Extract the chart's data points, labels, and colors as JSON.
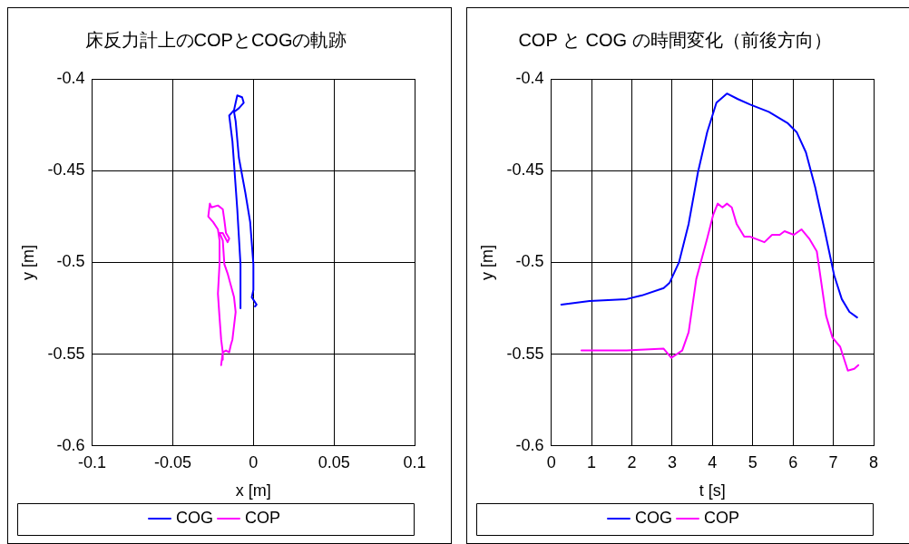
{
  "chart_data": [
    {
      "type": "line",
      "title": "床反力計上のCOPとCOGの軌跡",
      "xlabel": "x [m]",
      "ylabel": "y [m]",
      "xlim": [
        -0.1,
        0.1
      ],
      "xticks": [
        -0.1,
        -0.05,
        0,
        0.05,
        0.1
      ],
      "ylim": [
        -0.6,
        -0.4
      ],
      "yticks": [
        -0.6,
        -0.55,
        -0.5,
        -0.45,
        -0.4
      ],
      "grid": true,
      "legend": "bottom",
      "marker": "none",
      "line_style": "solid",
      "series": [
        {
          "name": "COG",
          "color": "#0000ff",
          "x": [
            -0.008,
            -0.008,
            -0.01,
            -0.013,
            -0.015,
            -0.012,
            -0.011,
            -0.01,
            -0.007,
            -0.006,
            -0.009,
            -0.012,
            -0.011,
            -0.009,
            -0.005,
            -0.002,
            0.0,
            0.0,
            -0.001,
            0.002,
            0.001
          ],
          "values": [
            -0.525,
            -0.501,
            -0.471,
            -0.434,
            -0.42,
            -0.417,
            -0.413,
            -0.409,
            -0.41,
            -0.413,
            -0.416,
            -0.418,
            -0.423,
            -0.443,
            -0.462,
            -0.478,
            -0.501,
            -0.515,
            -0.519,
            -0.523,
            -0.524
          ]
        },
        {
          "name": "COP",
          "color": "#ff00ff",
          "x": [
            -0.02,
            -0.019,
            -0.017,
            -0.015,
            -0.014,
            -0.013,
            -0.011,
            -0.012,
            -0.016,
            -0.018,
            -0.019,
            -0.021,
            -0.019,
            -0.016,
            -0.015,
            -0.017,
            -0.018,
            -0.019,
            -0.022,
            -0.026,
            -0.027,
            -0.028,
            -0.025,
            -0.022,
            -0.021,
            -0.021,
            -0.022,
            -0.021,
            -0.02,
            -0.019,
            -0.019
          ],
          "values": [
            -0.556,
            -0.549,
            -0.548,
            -0.549,
            -0.545,
            -0.542,
            -0.527,
            -0.519,
            -0.506,
            -0.501,
            -0.488,
            -0.484,
            -0.484,
            -0.489,
            -0.487,
            -0.484,
            -0.477,
            -0.471,
            -0.469,
            -0.47,
            -0.468,
            -0.475,
            -0.478,
            -0.482,
            -0.488,
            -0.501,
            -0.517,
            -0.53,
            -0.542,
            -0.549,
            -0.553
          ]
        }
      ]
    },
    {
      "type": "line",
      "title": "COP と COG の時間変化（前後方向）",
      "xlabel": "t [s]",
      "ylabel": "y [m]",
      "xlim": [
        0,
        8
      ],
      "xticks": [
        0,
        1,
        2,
        3,
        4,
        5,
        6,
        7,
        8
      ],
      "ylim": [
        -0.6,
        -0.4
      ],
      "yticks": [
        -0.6,
        -0.55,
        -0.5,
        -0.45,
        -0.4
      ],
      "grid": true,
      "legend": "bottom",
      "marker": "none",
      "line_style": "solid",
      "series": [
        {
          "name": "COG",
          "color": "#0000ff",
          "x": [
            0.25,
            0.95,
            1.87,
            2.25,
            2.79,
            2.94,
            3.17,
            3.41,
            3.64,
            3.87,
            4.1,
            4.36,
            4.63,
            4.94,
            5.4,
            5.86,
            6.09,
            6.32,
            6.55,
            6.79,
            7.02,
            7.21,
            7.4,
            7.59
          ],
          "values": [
            -0.523,
            -0.521,
            -0.52,
            -0.518,
            -0.514,
            -0.511,
            -0.5,
            -0.479,
            -0.451,
            -0.429,
            -0.413,
            -0.408,
            -0.411,
            -0.414,
            -0.418,
            -0.424,
            -0.429,
            -0.44,
            -0.459,
            -0.483,
            -0.507,
            -0.52,
            -0.527,
            -0.53
          ]
        },
        {
          "name": "COP",
          "color": "#ff00ff",
          "x": [
            0.75,
            1.87,
            2.79,
            2.98,
            3.25,
            3.41,
            3.6,
            3.87,
            4.02,
            4.13,
            4.25,
            4.36,
            4.48,
            4.6,
            4.79,
            4.94,
            5.29,
            5.48,
            5.67,
            5.79,
            6.02,
            6.21,
            6.4,
            6.59,
            6.82,
            6.98,
            7.17,
            7.36,
            7.52,
            7.62
          ],
          "values": [
            -0.548,
            -0.548,
            -0.547,
            -0.552,
            -0.548,
            -0.538,
            -0.509,
            -0.487,
            -0.474,
            -0.468,
            -0.47,
            -0.468,
            -0.47,
            -0.479,
            -0.486,
            -0.486,
            -0.489,
            -0.485,
            -0.485,
            -0.483,
            -0.485,
            -0.482,
            -0.487,
            -0.494,
            -0.529,
            -0.541,
            -0.546,
            -0.559,
            -0.558,
            -0.556
          ]
        }
      ]
    }
  ]
}
